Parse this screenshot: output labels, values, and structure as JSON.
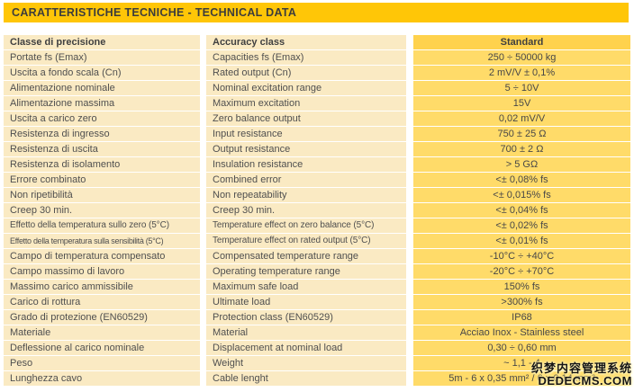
{
  "title": "CARATTERISTICHE TECNICHE - TECHNICAL DATA",
  "colors": {
    "title_bar_bg": "#FFC607",
    "label_cell_bg": "#FAEAC3",
    "value_cell_bg": "#FFDB69",
    "value_header_bg": "#FFD24D",
    "text": "#4F4F4F"
  },
  "table": {
    "header": {
      "it": "Classe di precisione",
      "en": "Accuracy class",
      "value": "Standard"
    },
    "rows": [
      {
        "it": "Portate fs (Emax)",
        "en": "Capacities fs (Emax)",
        "value": "250 ÷ 50000 kg"
      },
      {
        "it": "Uscita a fondo scala (Cn)",
        "en": "Rated output (Cn)",
        "value": "2 mV/V ± 0,1%"
      },
      {
        "it": "Alimentazione nominale",
        "en": "Nominal excitation range",
        "value": "5 ÷ 10V"
      },
      {
        "it": "Alimentazione massima",
        "en": "Maximum excitation",
        "value": "15V"
      },
      {
        "it": "Uscita a carico zero",
        "en": "Zero balance output",
        "value": "0,02 mV/V"
      },
      {
        "it": "Resistenza di ingresso",
        "en": "Input resistance",
        "value": "750 ± 25 Ω"
      },
      {
        "it": "Resistenza di uscita",
        "en": "Output resistance",
        "value": "700 ± 2 Ω"
      },
      {
        "it": "Resistenza di isolamento",
        "en": "Insulation resistance",
        "value": "> 5 GΩ"
      },
      {
        "it": "Errore combinato",
        "en": "Combined error",
        "value": "<± 0,08% fs"
      },
      {
        "it": "Non ripetibilità",
        "en": "Non repeatability",
        "value": "<± 0,015% fs"
      },
      {
        "it": "Creep 30 min.",
        "en": "Creep 30 min.",
        "value": "<± 0,04% fs"
      },
      {
        "it": "Effetto della temperatura sullo zero (5°C)",
        "en": "Temperature effect on zero balance (5°C)",
        "value": "<± 0,02% fs"
      },
      {
        "it": "Effetto della temperatura sulla sensibilità (5°C)",
        "en": "Temperature effect on rated output (5°C)",
        "value": "<± 0,01% fs"
      },
      {
        "it": "Campo di temperatura compensato",
        "en": "Compensated temperature range",
        "value": "-10°C ÷ +40°C"
      },
      {
        "it": "Campo massimo di lavoro",
        "en": "Operating temperature range",
        "value": "-20°C ÷ +70°C"
      },
      {
        "it": "Massimo carico ammissibile",
        "en": "Maximum safe load",
        "value": "150% fs"
      },
      {
        "it": "Carico di rottura",
        "en": "Ultimate load",
        "value": ">300% fs"
      },
      {
        "it": "Grado di protezione (EN60529)",
        "en": "Protection class (EN60529)",
        "value": "IP68"
      },
      {
        "it": "Materiale",
        "en": "Material",
        "value": "Acciao Inox - Stainless steel"
      },
      {
        "it": "Deflessione al carico nominale",
        "en": "Displacement at nominal load",
        "value": "0,30 ÷ 0,60 mm"
      },
      {
        "it": "Peso",
        "en": "Weight",
        "value": "~ 1,1 - 4"
      },
      {
        "it": "Lunghezza cavo",
        "en": "Cable lenght",
        "value": "5m - 6 x 0,35 mm² / 6 x 0,14 mm²"
      }
    ]
  },
  "watermark": {
    "line1": "织梦内容管理系统",
    "line2": "DEDECMS.COM"
  }
}
